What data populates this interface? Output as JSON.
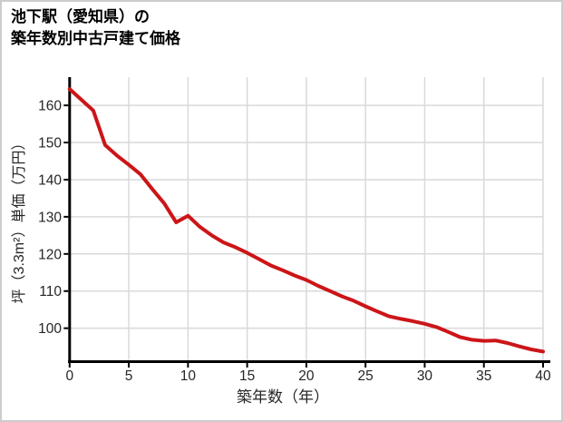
{
  "page": {
    "background_color": "#ffffff",
    "border_color": "#cccccc"
  },
  "title": {
    "line1": "池下駅（愛知県）の",
    "line2": "築年数別中古戸建て価格"
  },
  "chart_data": {
    "type": "line",
    "title": "池下駅（愛知県）の築年数別中古戸建て価格",
    "xlabel": "築年数（年）",
    "ylabel": "坪（3.3m²）単価（万円）",
    "x": [
      0,
      1,
      2,
      3,
      4,
      5,
      6,
      7,
      8,
      9,
      10,
      11,
      12,
      13,
      14,
      15,
      16,
      17,
      18,
      19,
      20,
      21,
      22,
      23,
      24,
      25,
      26,
      27,
      28,
      29,
      30,
      31,
      32,
      33,
      34,
      35,
      36,
      37,
      38,
      39,
      40
    ],
    "values": [
      164.4,
      161.5,
      158.6,
      149.3,
      146.5,
      144.0,
      141.4,
      137.4,
      133.6,
      128.5,
      130.3,
      127.3,
      125.0,
      123.1,
      121.8,
      120.3,
      118.6,
      116.9,
      115.6,
      114.2,
      113.0,
      111.4,
      110.0,
      108.6,
      107.4,
      105.9,
      104.5,
      103.2,
      102.5,
      101.9,
      101.2,
      100.3,
      99.0,
      97.6,
      96.9,
      96.6,
      96.7,
      96.0,
      95.1,
      94.3,
      93.7
    ],
    "x_ticks": [
      0,
      5,
      10,
      15,
      20,
      25,
      30,
      35,
      40
    ],
    "y_ticks": [
      100,
      110,
      120,
      130,
      140,
      150,
      160
    ],
    "xlim": [
      0,
      40
    ],
    "ylim": [
      91.0,
      167.6
    ],
    "grid": true,
    "legend": false,
    "line_color": "#cc1518",
    "grid_color": "#d9d9d9",
    "axis_color": "#000000",
    "tick_label_color": "#262626"
  }
}
